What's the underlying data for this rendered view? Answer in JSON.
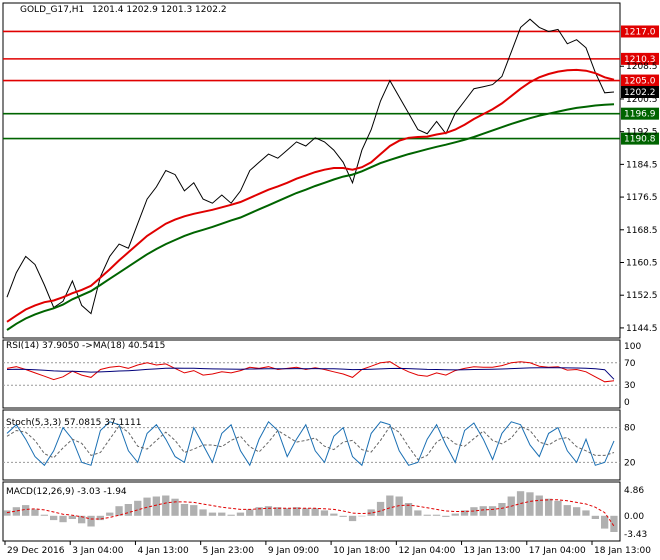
{
  "chart_data": {
    "type": "line",
    "symbol_label": "GOLD_G17,H1",
    "ohlc_text": "1201.4 1202.9 1201.3 1202.2",
    "current_price": 1202.2,
    "price_axis": {
      "ylim": [
        1143.5,
        1222.5
      ],
      "ticks": [
        "1208.5",
        "1200.5",
        "1192.5",
        "1184.5",
        "1176.5",
        "1168.5",
        "1160.5",
        "1152.5",
        "1144.5"
      ]
    },
    "levels": [
      {
        "label": "1217.0",
        "value": 1217.0,
        "color": "#e00000"
      },
      {
        "label": "1210.3",
        "value": 1210.3,
        "color": "#e00000"
      },
      {
        "label": "1205.0",
        "value": 1205.0,
        "color": "#e00000"
      },
      {
        "label": "1196.9",
        "value": 1196.9,
        "color": "#006400"
      },
      {
        "label": "1190.8",
        "value": 1190.8,
        "color": "#006400"
      }
    ],
    "x_labels": [
      "29 Dec 2016",
      "3 Jan 04:00",
      "4 Jan 13:00",
      "5 Jan 23:00",
      "9 Jan 09:00",
      "10 Jan 18:00",
      "12 Jan 04:00",
      "13 Jan 13:00",
      "17 Jan 04:00",
      "18 Jan 13:00"
    ],
    "price_series": [
      {
        "name": "price",
        "values": [
          1152.0,
          1158.0,
          1162.0,
          1160.0,
          1155.0,
          1149.5,
          1151.0,
          1156.0,
          1150.0,
          1148.0,
          1157.0,
          1162.0,
          1165.0,
          1164.0,
          1170.0,
          1176.0,
          1179.0,
          1183.0,
          1182.0,
          1178.0,
          1180.0,
          1176.0,
          1175.0,
          1177.0,
          1175.0,
          1178.0,
          1183.0,
          1185.0,
          1187.0,
          1186.0,
          1188.0,
          1190.0,
          1189.0,
          1191.0,
          1190.0,
          1188.0,
          1185.0,
          1180.0,
          1188.0,
          1193.0,
          1200.0,
          1205.0,
          1201.0,
          1197.0,
          1193.0,
          1192.0,
          1195.0,
          1192.0,
          1197.0,
          1200.0,
          1203.0,
          1203.5,
          1204.0,
          1206.0,
          1212.0,
          1218.0,
          1220.0,
          1218.0,
          1217.0,
          1217.5,
          1214.0,
          1215.0,
          1213.0,
          1207.0,
          1202.0,
          1202.2
        ]
      },
      {
        "name": "ma_slow",
        "values": [
          1144.0,
          1145.5,
          1146.8,
          1147.8,
          1148.6,
          1149.3,
          1150.2,
          1151.5,
          1152.5,
          1153.5,
          1155.0,
          1156.5,
          1158.0,
          1159.5,
          1161.0,
          1162.5,
          1163.8,
          1165.0,
          1166.0,
          1167.0,
          1167.8,
          1168.5,
          1169.2,
          1170.0,
          1170.8,
          1171.5,
          1172.5,
          1173.5,
          1174.5,
          1175.5,
          1176.5,
          1177.5,
          1178.3,
          1179.2,
          1180.0,
          1180.8,
          1181.5,
          1182.0,
          1182.8,
          1183.8,
          1184.8,
          1185.6,
          1186.3,
          1187.0,
          1187.6,
          1188.2,
          1188.8,
          1189.3,
          1189.9,
          1190.5,
          1191.2,
          1192.0,
          1192.8,
          1193.6,
          1194.4,
          1195.1,
          1195.8,
          1196.4,
          1196.9,
          1197.4,
          1197.9,
          1198.3,
          1198.6,
          1198.9,
          1199.1,
          1199.2
        ]
      },
      {
        "name": "ma_mid",
        "values": [
          1146.0,
          1147.5,
          1149.0,
          1150.0,
          1150.8,
          1151.2,
          1152.0,
          1153.0,
          1153.8,
          1154.8,
          1156.8,
          1158.8,
          1161.0,
          1163.0,
          1165.0,
          1167.0,
          1168.5,
          1170.0,
          1171.0,
          1171.8,
          1172.4,
          1172.9,
          1173.4,
          1174.0,
          1174.6,
          1175.3,
          1176.3,
          1177.3,
          1178.3,
          1179.1,
          1180.0,
          1181.0,
          1181.8,
          1182.6,
          1183.2,
          1183.6,
          1183.6,
          1183.2,
          1183.8,
          1185.0,
          1187.0,
          1189.0,
          1190.3,
          1191.0,
          1191.2,
          1191.3,
          1191.8,
          1192.2,
          1193.0,
          1194.2,
          1195.6,
          1196.8,
          1198.0,
          1199.4,
          1201.2,
          1203.0,
          1204.6,
          1205.8,
          1206.6,
          1207.2,
          1207.5,
          1207.6,
          1207.4,
          1206.8,
          1205.8,
          1205.2
        ]
      }
    ],
    "rsi": {
      "label": "RSI(14) 37.9050 ->MA(18) 40.5415",
      "ylim": [
        0,
        100
      ],
      "ticks": [
        "100",
        "70",
        "30",
        "0"
      ],
      "values": [
        60.0,
        63.0,
        58.0,
        52.0,
        46.0,
        40.0,
        45.0,
        55.0,
        48.0,
        44.0,
        58.0,
        62.0,
        64.0,
        60.0,
        66.0,
        70.0,
        66.0,
        68.0,
        60.0,
        52.0,
        56.0,
        48.0,
        50.0,
        54.0,
        52.0,
        56.0,
        62.0,
        60.0,
        63.0,
        58.0,
        60.0,
        62.0,
        58.0,
        61.0,
        58.0,
        54.0,
        50.0,
        44.0,
        58.0,
        64.0,
        70.0,
        72.0,
        62.0,
        54.0,
        48.0,
        46.0,
        52.0,
        48.0,
        56.0,
        60.0,
        63.0,
        62.0,
        62.0,
        65.0,
        70.0,
        72.0,
        70.0,
        64.0,
        62.0,
        63.0,
        57.0,
        58.0,
        54.0,
        45.0,
        36.0,
        37.9
      ],
      "ma_values": [
        58.0,
        58.4,
        58.2,
        57.6,
        56.8,
        55.6,
        54.9,
        54.9,
        54.2,
        53.4,
        53.8,
        54.4,
        55.4,
        55.9,
        56.9,
        58.2,
        59.1,
        60.1,
        60.5,
        60.2,
        60.2,
        59.6,
        59.1,
        59.0,
        58.7,
        58.6,
        59.0,
        59.1,
        59.4,
        59.3,
        59.4,
        59.6,
        59.5,
        59.6,
        59.5,
        59.2,
        58.7,
        57.9,
        58.0,
        58.4,
        59.1,
        59.9,
        60.0,
        59.6,
        59.0,
        58.3,
        58.0,
        57.5,
        57.4,
        57.6,
        58.0,
        58.3,
        58.6,
        59.0,
        59.7,
        60.4,
        60.9,
        61.1,
        61.2,
        61.3,
        60.9,
        60.7,
        60.3,
        59.2,
        57.6,
        40.5
      ]
    },
    "stoch": {
      "label": "Stoch(5,3,3) 57.0815 37.1111",
      "ylim": [
        0,
        100
      ],
      "ticks": [
        "80",
        "20"
      ],
      "main_values": [
        70,
        85,
        60,
        30,
        15,
        40,
        80,
        60,
        20,
        15,
        75,
        90,
        85,
        40,
        20,
        70,
        85,
        60,
        30,
        20,
        80,
        50,
        20,
        70,
        85,
        40,
        15,
        60,
        90,
        75,
        30,
        60,
        85,
        40,
        20,
        65,
        80,
        30,
        15,
        70,
        90,
        85,
        40,
        15,
        20,
        60,
        85,
        50,
        20,
        75,
        88,
        60,
        25,
        70,
        90,
        85,
        50,
        30,
        70,
        80,
        40,
        20,
        60,
        15,
        20,
        57.1
      ],
      "signal_values": [
        65,
        75,
        72,
        58,
        35,
        28,
        45,
        60,
        53,
        32,
        37,
        60,
        83,
        72,
        48,
        43,
        58,
        72,
        58,
        37,
        43,
        50,
        50,
        47,
        58,
        65,
        47,
        38,
        55,
        75,
        65,
        55,
        58,
        62,
        48,
        42,
        55,
        58,
        42,
        38,
        58,
        82,
        72,
        47,
        25,
        32,
        55,
        65,
        52,
        48,
        61,
        74,
        58,
        52,
        62,
        82,
        75,
        55,
        50,
        60,
        63,
        47,
        40,
        32,
        32,
        37.1
      ]
    },
    "macd": {
      "label": "MACD(12,26,9) -3.03 -1.94",
      "ylim": [
        -3.6,
        5.2
      ],
      "ticks": [
        "4.86",
        "0.00",
        "-3.43"
      ],
      "hist": [
        1.0,
        1.6,
        2.0,
        1.2,
        0.2,
        -0.8,
        -1.2,
        -0.6,
        -1.4,
        -2.0,
        -0.8,
        0.6,
        1.8,
        2.2,
        2.8,
        3.4,
        3.6,
        3.8,
        3.2,
        2.2,
        2.0,
        1.2,
        0.6,
        0.6,
        0.2,
        0.6,
        1.2,
        1.6,
        1.8,
        1.6,
        1.4,
        1.6,
        1.4,
        1.4,
        1.0,
        0.4,
        -0.2,
        -1.0,
        0.0,
        1.2,
        2.6,
        3.8,
        3.6,
        2.4,
        1.0,
        0.2,
        0.2,
        -0.2,
        0.4,
        1.0,
        1.6,
        1.8,
        1.8,
        2.4,
        3.6,
        4.6,
        4.4,
        3.8,
        3.2,
        2.8,
        2.0,
        1.6,
        1.0,
        -0.6,
        -2.4,
        -3.03
      ],
      "signal": [
        0.6,
        0.9,
        1.2,
        1.3,
        1.1,
        0.7,
        0.3,
        0.1,
        -0.2,
        -0.6,
        -0.6,
        -0.3,
        0.1,
        0.6,
        1.1,
        1.6,
        2.0,
        2.4,
        2.6,
        2.6,
        2.5,
        2.2,
        1.9,
        1.6,
        1.4,
        1.2,
        1.2,
        1.3,
        1.4,
        1.4,
        1.4,
        1.4,
        1.4,
        1.4,
        1.3,
        1.2,
        0.9,
        0.5,
        0.4,
        0.5,
        0.9,
        1.5,
        1.9,
        2.0,
        1.8,
        1.5,
        1.2,
        0.9,
        0.8,
        0.8,
        0.9,
        1.1,
        1.2,
        1.4,
        1.8,
        2.3,
        2.7,
        2.9,
        3.0,
        3.0,
        2.8,
        2.5,
        2.2,
        1.6,
        0.6,
        -1.94
      ]
    }
  }
}
